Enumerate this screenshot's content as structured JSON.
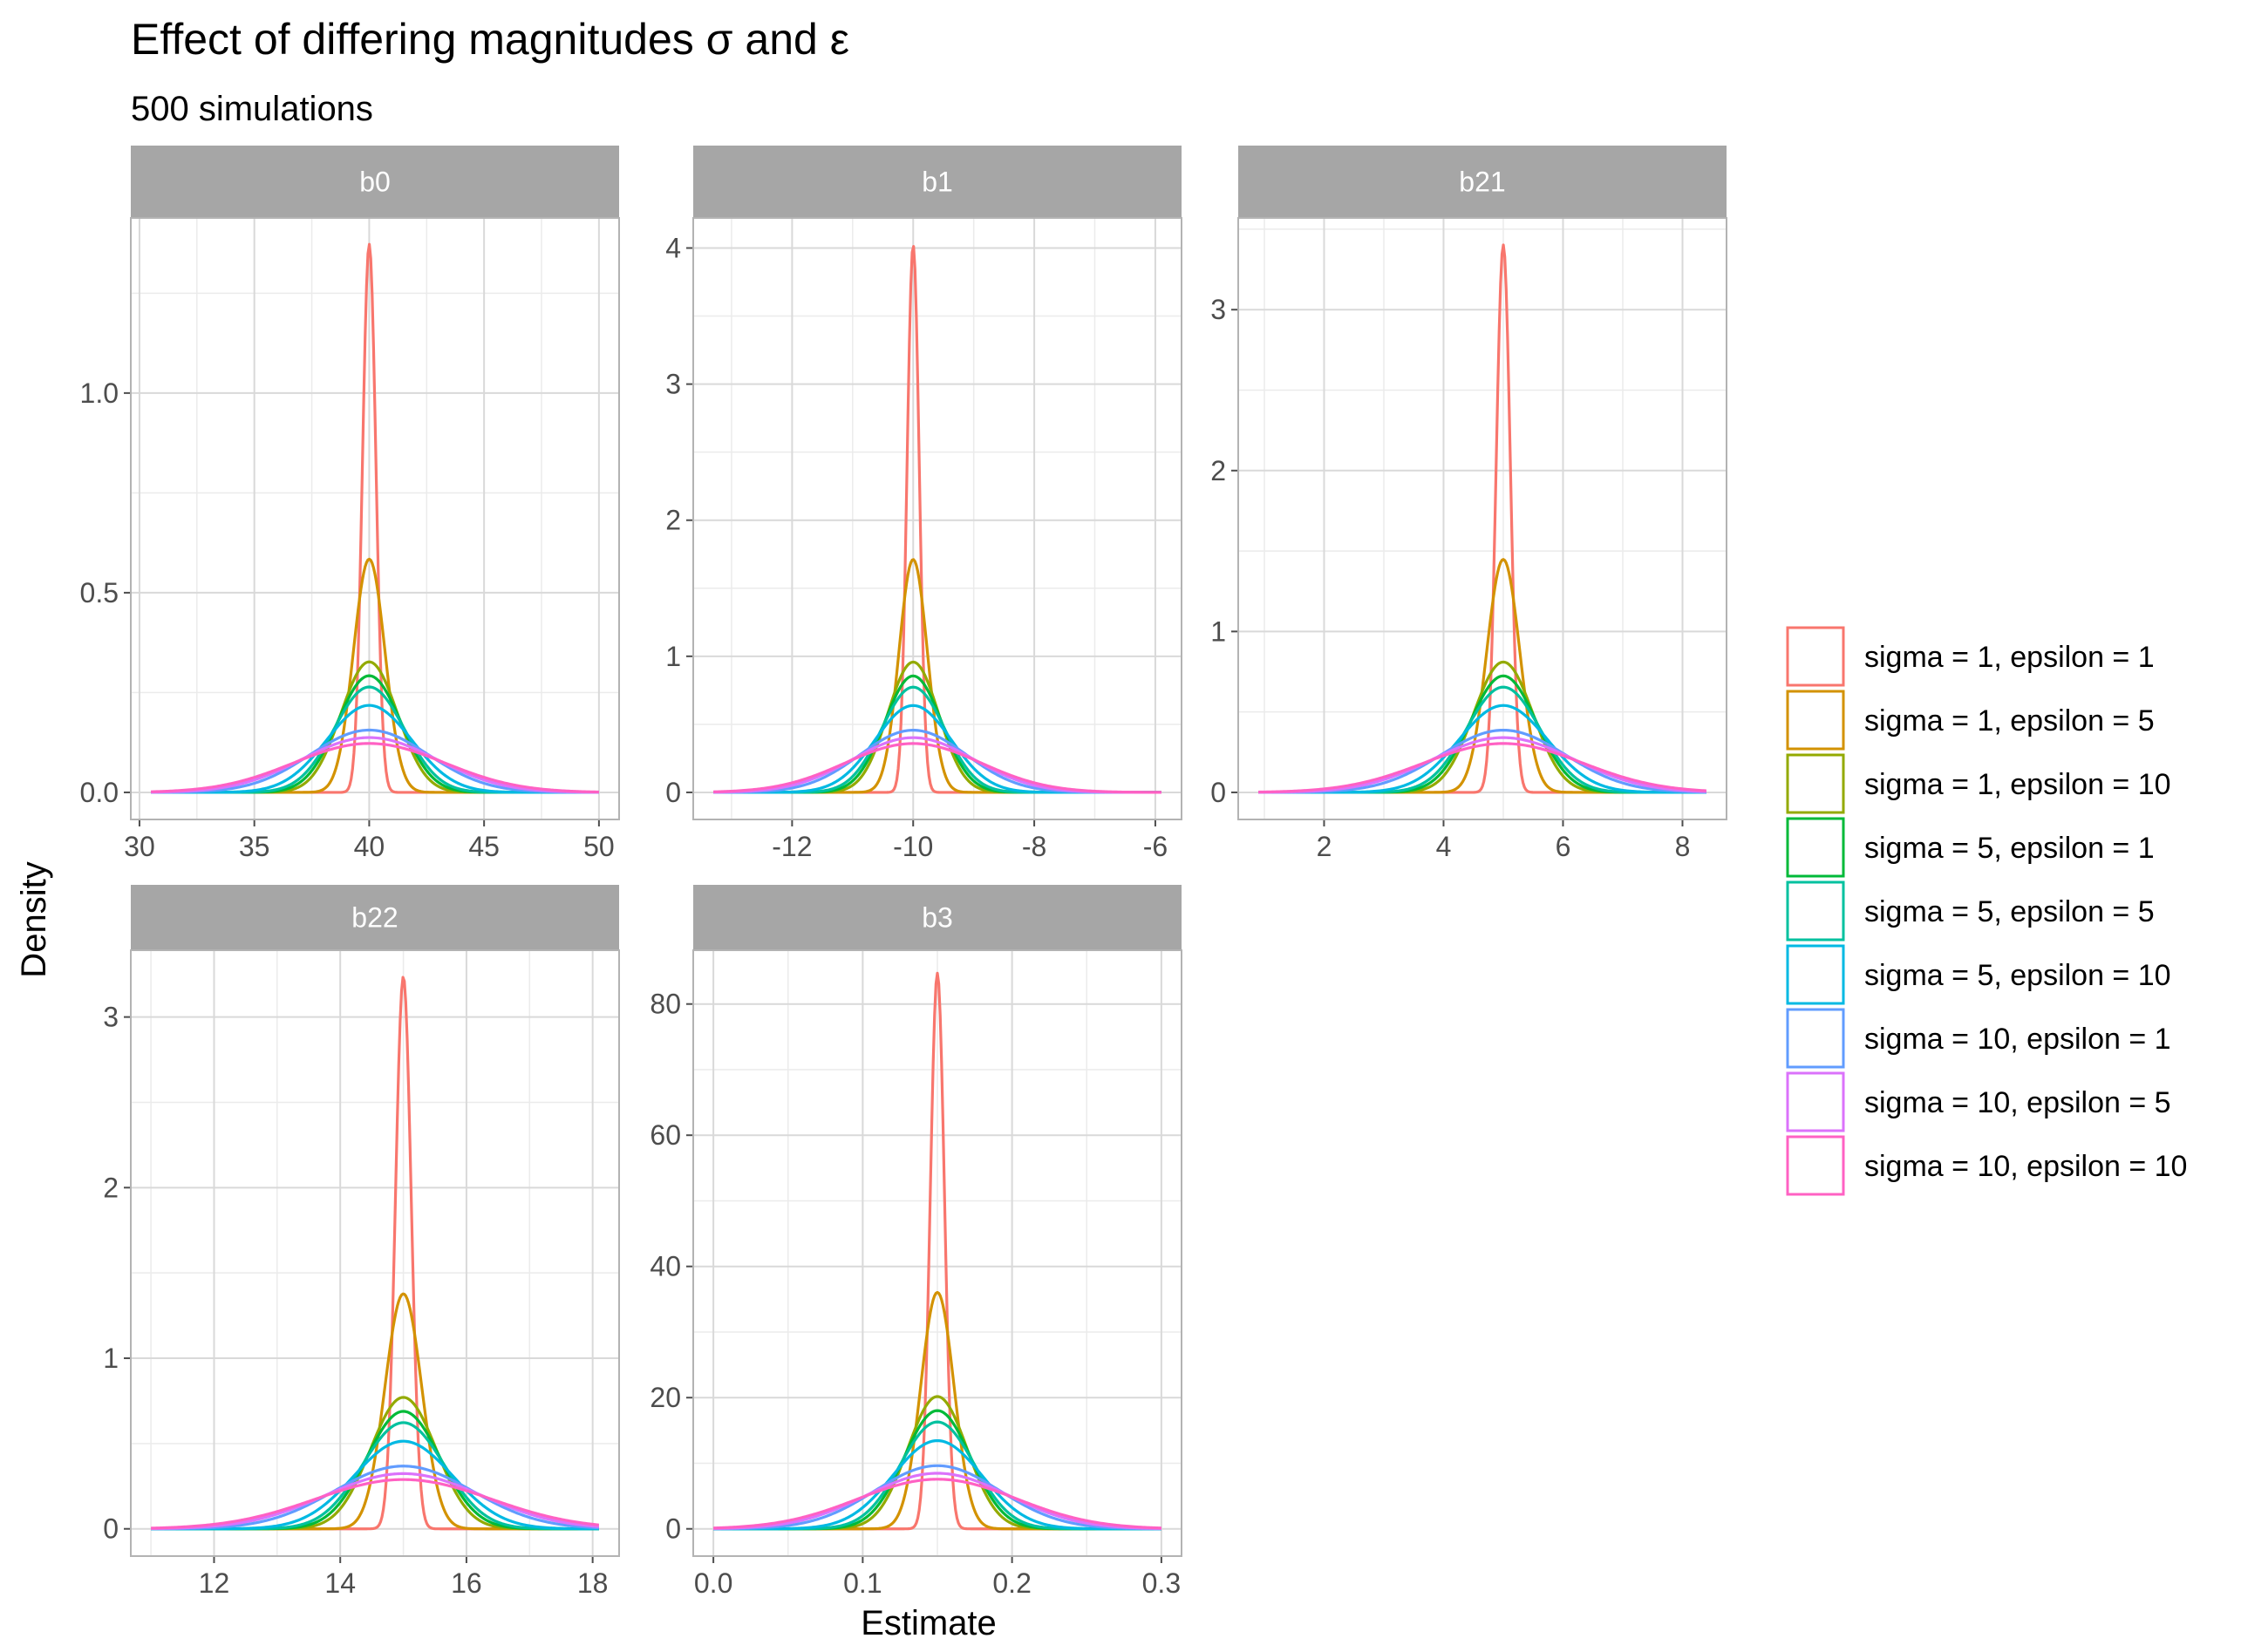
{
  "chart_data": {
    "type": "line",
    "title": "Effect of differing magnitudes σ and ε",
    "subtitle": "500 simulations",
    "xlabel": "Estimate",
    "ylabel": "Density",
    "grid": true,
    "legend_position": "right",
    "series": [
      {
        "name": "sigma = 1, epsilon = 1",
        "color": "#F8766D",
        "sd_scale": 1.0
      },
      {
        "name": "sigma = 1, epsilon = 5",
        "color": "#D39200",
        "sd_scale": 2.35
      },
      {
        "name": "sigma = 1, epsilon = 10",
        "color": "#93AA00",
        "sd_scale": 4.2
      },
      {
        "name": "sigma = 5, epsilon = 1",
        "color": "#00BA38",
        "sd_scale": 4.7
      },
      {
        "name": "sigma = 5, epsilon = 5",
        "color": "#00C19F",
        "sd_scale": 5.2
      },
      {
        "name": "sigma = 5, epsilon = 10",
        "color": "#00B9E3",
        "sd_scale": 6.3
      },
      {
        "name": "sigma = 10, epsilon = 1",
        "color": "#619CFF",
        "sd_scale": 8.8
      },
      {
        "name": "sigma = 10, epsilon = 5",
        "color": "#DB72FB",
        "sd_scale": 10.0
      },
      {
        "name": "sigma = 10, epsilon = 10",
        "color": "#FF61C3",
        "sd_scale": 11.2
      }
    ],
    "panels": [
      {
        "label": "b0",
        "true_value": 40,
        "base_sd": 0.29,
        "xlim": [
          30.5,
          50
        ],
        "ylim": [
          0,
          1.37
        ],
        "xticks": [
          30,
          35,
          40,
          45,
          50
        ],
        "yticks": [
          0.0,
          0.5,
          1.0
        ],
        "xtick_labels": [
          "30",
          "35",
          "40",
          "45",
          "50"
        ],
        "ytick_labels": [
          "0.0",
          "0.5",
          "1.0"
        ]
      },
      {
        "label": "b1",
        "true_value": -10,
        "base_sd": 0.099,
        "xlim": [
          -13.3,
          -5.9
        ],
        "ylim": [
          0,
          4.02
        ],
        "xticks": [
          -12,
          -10,
          -8,
          -6
        ],
        "yticks": [
          0,
          1,
          2,
          3,
          4
        ],
        "xtick_labels": [
          "-12",
          "-10",
          "-8",
          "-6"
        ],
        "ytick_labels": [
          "0",
          "1",
          "2",
          "3",
          "4"
        ]
      },
      {
        "label": "b21",
        "true_value": 5,
        "base_sd": 0.117,
        "xlim": [
          0.9,
          8.4
        ],
        "ylim": [
          0,
          3.4
        ],
        "xticks": [
          2,
          4,
          6,
          8
        ],
        "yticks": [
          0,
          1,
          2,
          3
        ],
        "xtick_labels": [
          "2",
          "4",
          "6",
          "8"
        ],
        "ytick_labels": [
          "0",
          "1",
          "2",
          "3"
        ]
      },
      {
        "label": "b22",
        "true_value": 15,
        "base_sd": 0.123,
        "xlim": [
          11.0,
          18.1
        ],
        "ylim": [
          0,
          3.23
        ],
        "xticks": [
          12,
          14,
          16,
          18
        ],
        "yticks": [
          0,
          1,
          2,
          3
        ],
        "xtick_labels": [
          "12",
          "14",
          "16",
          "18"
        ],
        "ytick_labels": [
          "0",
          "1",
          "2",
          "3"
        ]
      },
      {
        "label": "b3",
        "true_value": 0.15,
        "base_sd": 0.0047,
        "xlim": [
          0.0,
          0.3
        ],
        "ylim": [
          0,
          84
        ],
        "xticks": [
          0.0,
          0.1,
          0.2,
          0.3
        ],
        "yticks": [
          0,
          20,
          40,
          60,
          80
        ],
        "xtick_labels": [
          "0.0",
          "0.1",
          "0.2",
          "0.3"
        ],
        "ytick_labels": [
          "0",
          "20",
          "40",
          "60",
          "80"
        ]
      }
    ]
  }
}
